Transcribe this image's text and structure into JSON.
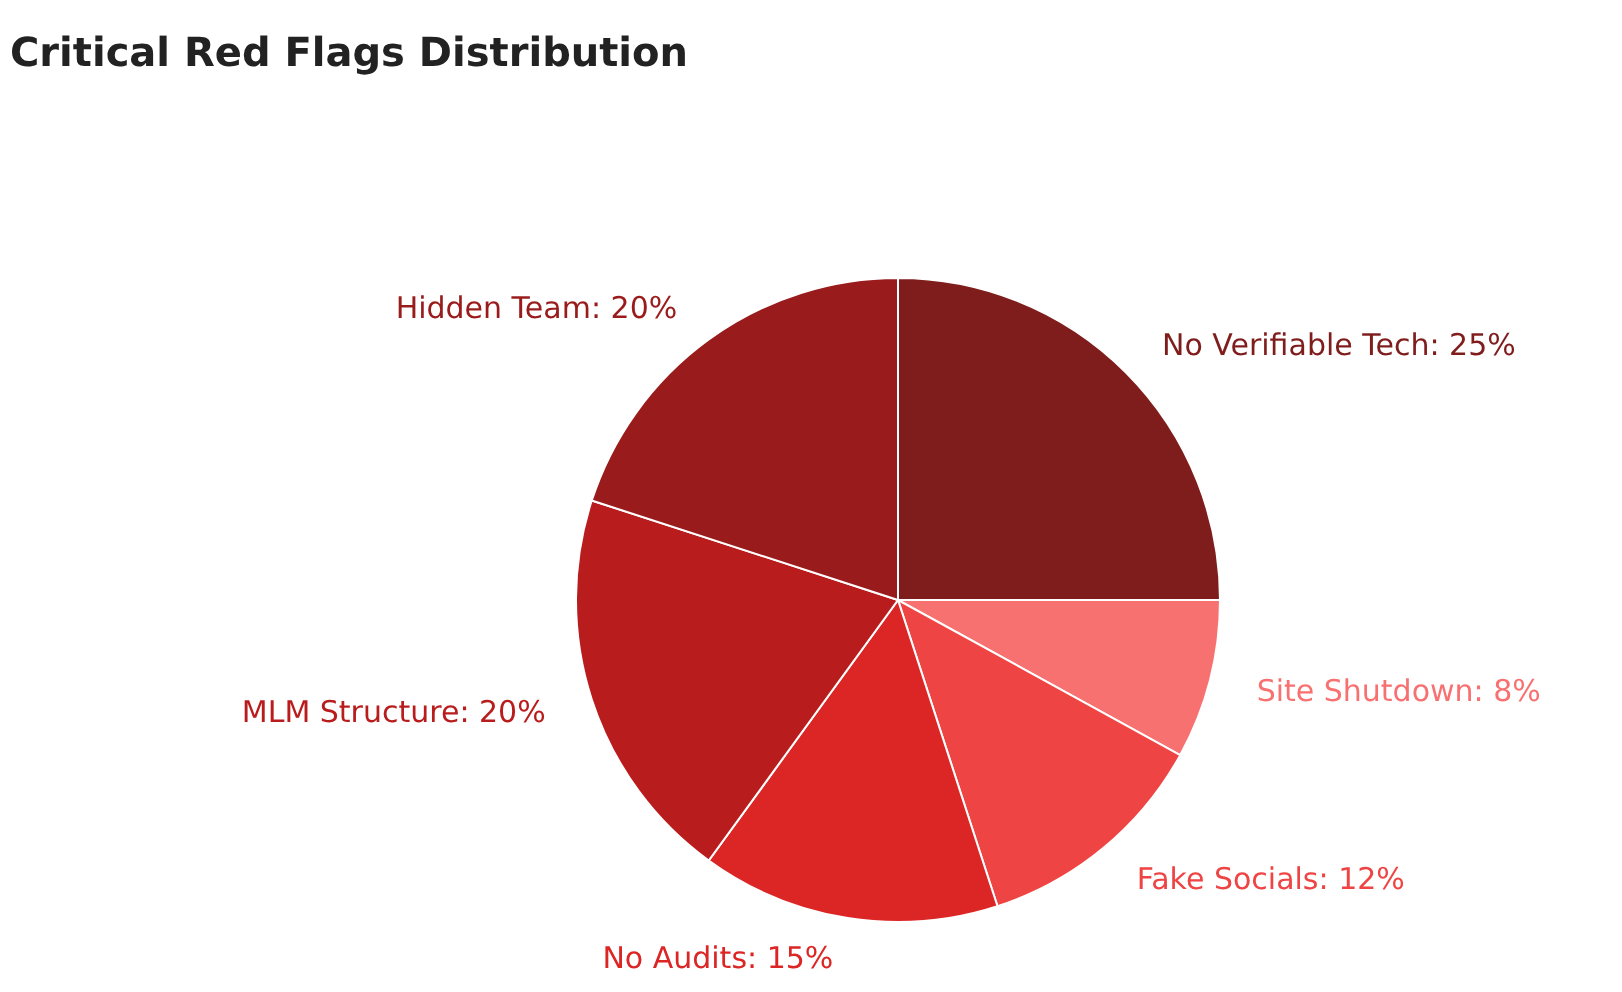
{
  "chart_data": {
    "type": "pie",
    "title": "Critical Red Flags Distribution",
    "categories": [
      "No Verifiable Tech",
      "Site Shutdown",
      "Fake Socials",
      "No Audits",
      "MLM Structure",
      "Hidden Team"
    ],
    "values": [
      25,
      8,
      12,
      15,
      20,
      20
    ],
    "colors": [
      "#7f1d1d",
      "#f87171",
      "#ef4444",
      "#dc2626",
      "#b91c1c",
      "#991b1b"
    ],
    "value_labels": [
      ": 25%",
      ": 8%",
      ": 12%",
      ": 15%",
      ": 20%",
      ": 20%"
    ],
    "legend": false
  }
}
